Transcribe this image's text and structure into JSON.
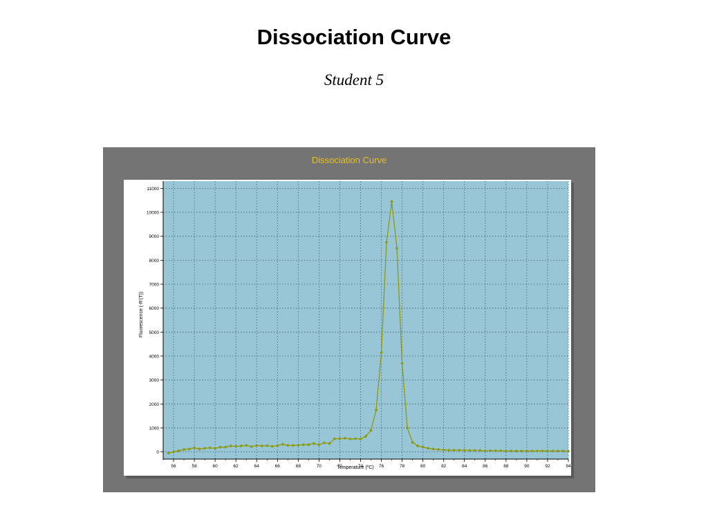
{
  "slide": {
    "title": "Dissociation Curve",
    "subtitle": "Student 5"
  },
  "colors": {
    "panel": "#747474",
    "plot_background": "#99c6d6",
    "series": "#8c9a10",
    "chart_title": "#e8c020",
    "grid": "#3e5f70"
  },
  "chart_data": {
    "type": "line",
    "title": "Dissociation Curve",
    "xlabel": "Temperature (ºC)",
    "ylabel": "Fluorescence (-R'(T))",
    "xlim": [
      55,
      94
    ],
    "ylim": [
      -300,
      11300
    ],
    "x_ticks": [
      56,
      58,
      60,
      62,
      64,
      66,
      68,
      70,
      72,
      74,
      76,
      78,
      80,
      82,
      84,
      86,
      88,
      90,
      92,
      94
    ],
    "y_ticks": [
      0,
      1000,
      2000,
      3000,
      4000,
      5000,
      6000,
      7000,
      8000,
      9000,
      10000,
      11000
    ],
    "grid": true,
    "series": [
      {
        "x": [
          55.5,
          56.0,
          56.5,
          57.0,
          57.5,
          58.0,
          58.5,
          59.0,
          59.5,
          60.0,
          60.5,
          61.0,
          61.5,
          62.0,
          62.5,
          63.0,
          63.5,
          64.0,
          64.5,
          65.0,
          65.5,
          66.0,
          66.5,
          67.0,
          67.5,
          68.0,
          68.5,
          69.0,
          69.5,
          70.0,
          70.5,
          71.0,
          71.5,
          72.0,
          72.5,
          73.0,
          73.5,
          74.0,
          74.5,
          75.0,
          75.5,
          76.0,
          76.5,
          77.0,
          77.5,
          78.0,
          78.5,
          79.0,
          79.5,
          80.0,
          80.5,
          81.0,
          81.5,
          82.0,
          82.5,
          83.0,
          83.5,
          84.0,
          84.5,
          85.0,
          85.5,
          86.0,
          86.5,
          87.0,
          87.5,
          88.0,
          88.5,
          89.0,
          89.5,
          90.0,
          90.5,
          91.0,
          91.5,
          92.0,
          92.5,
          93.0,
          93.5,
          94.0
        ],
        "y": [
          -50,
          0,
          50,
          100,
          120,
          170,
          120,
          150,
          170,
          150,
          200,
          200,
          250,
          230,
          250,
          270,
          220,
          270,
          250,
          260,
          230,
          260,
          320,
          270,
          270,
          280,
          300,
          300,
          350,
          300,
          380,
          350,
          550,
          550,
          570,
          540,
          550,
          540,
          650,
          900,
          1750,
          4150,
          8750,
          10450,
          8500,
          3700,
          1000,
          400,
          250,
          200,
          150,
          120,
          100,
          80,
          70,
          70,
          70,
          70,
          60,
          60,
          60,
          50,
          50,
          50,
          50,
          40,
          40,
          40,
          40,
          40,
          40,
          40,
          40,
          40,
          40,
          40,
          40,
          30
        ]
      }
    ]
  }
}
